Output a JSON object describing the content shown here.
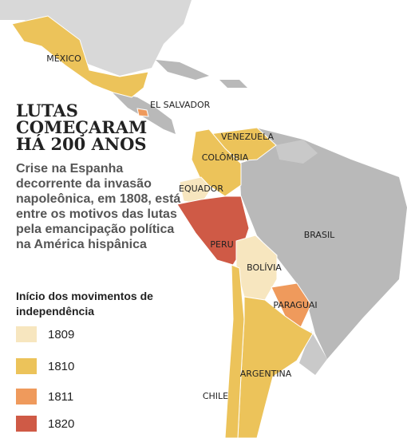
{
  "title": "LUTAS COMEÇARAM HÁ 200 ANOS",
  "subtitle": "Crise na Espanha decorrente da invasão napoleônica, em 1808, está entre os motivos das lutas pela emancipação política na América hispânica",
  "legend": {
    "title": "Início dos movimentos de independência",
    "items": [
      {
        "label": "1809",
        "color": "#f7e6bf"
      },
      {
        "label": "1810",
        "color": "#ecc35a"
      },
      {
        "label": "1811",
        "color": "#ef9a5c"
      },
      {
        "label": "1820",
        "color": "#cf5a46"
      }
    ]
  },
  "countries": [
    {
      "label": "MÉXICO",
      "color": "#ecc35a"
    },
    {
      "label": "EL SALVADOR",
      "color": "#ef9a5c"
    },
    {
      "label": "VENEZUELA",
      "color": "#ecc35a"
    },
    {
      "label": "COLÔMBIA",
      "color": "#ecc35a"
    },
    {
      "label": "EQUADOR",
      "color": "#f7e6bf"
    },
    {
      "label": "PERU",
      "color": "#cf5a46"
    },
    {
      "label": "BOLÍVIA",
      "color": "#f7e6bf"
    },
    {
      "label": "PARAGUAI",
      "color": "#ef9a5c"
    },
    {
      "label": "ARGENTINA",
      "color": "#ecc35a"
    },
    {
      "label": "CHILE",
      "color": "#ecc35a"
    },
    {
      "label": "BRASIL",
      "color": "#b9b9b9"
    }
  ]
}
